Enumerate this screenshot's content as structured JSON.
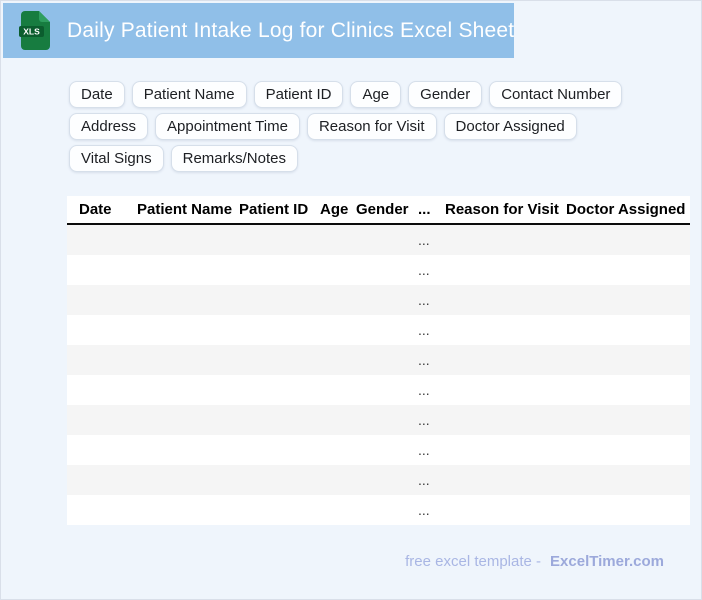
{
  "header": {
    "title": "Daily Patient Intake Log for Clinics Excel Sheet",
    "bar_color": "#90bfe8",
    "icon": {
      "name": "xls-file-icon",
      "label": "XLS",
      "body_color": "#177c40",
      "band_color": "#0b5d2e",
      "fold_color": "#2f9e5f"
    }
  },
  "chips": {
    "items": [
      "Date",
      "Patient Name",
      "Patient ID",
      "Age",
      "Gender",
      "Contact Number",
      "Address",
      "Appointment Time",
      "Reason for Visit",
      "Doctor Assigned",
      "Vital Signs",
      "Remarks/Notes"
    ]
  },
  "table": {
    "columns": [
      "Date",
      "Patient Name",
      "Patient ID",
      "Age",
      "Gender",
      "...",
      "Reason for Visit",
      "Doctor Assigned"
    ],
    "row_count": 10,
    "placeholder": "...",
    "placeholder_col": 5,
    "alt_row_color": "#f5f5f5",
    "row_color": "#ffffff"
  },
  "footer": {
    "prefix": "free excel template -",
    "brand": "ExcelTimer.com"
  }
}
